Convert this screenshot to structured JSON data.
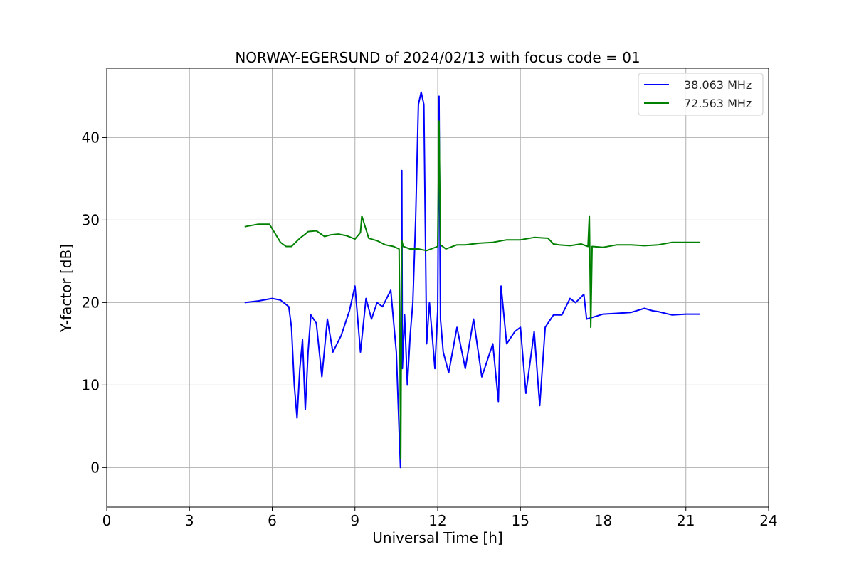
{
  "chart_data": {
    "type": "line",
    "title": "NORWAY-EGERSUND of 2024/02/13 with focus code = 01",
    "xlabel": "Universal Time [h]",
    "ylabel": "Y-factor [dB]",
    "xlim": [
      0,
      24
    ],
    "ylim": [
      -4.8,
      48.4
    ],
    "xticks": [
      "0",
      "3",
      "6",
      "9",
      "12",
      "15",
      "18",
      "21",
      "24"
    ],
    "yticks": [
      "0",
      "10",
      "20",
      "30",
      "40"
    ],
    "grid": true,
    "legend_position": "top-right",
    "series": [
      {
        "name": "38.063 MHz",
        "color": "#0000ff",
        "x": [
          5.0,
          5.5,
          6.0,
          6.3,
          6.6,
          6.7,
          6.8,
          6.9,
          7.0,
          7.1,
          7.2,
          7.3,
          7.4,
          7.6,
          7.8,
          8.0,
          8.2,
          8.5,
          8.8,
          9.0,
          9.2,
          9.4,
          9.6,
          9.8,
          10.0,
          10.3,
          10.5,
          10.65,
          10.7,
          10.72,
          10.8,
          10.9,
          11.0,
          11.1,
          11.2,
          11.3,
          11.4,
          11.5,
          11.6,
          11.7,
          11.8,
          11.9,
          12.0,
          12.05,
          12.1,
          12.2,
          12.4,
          12.7,
          13.0,
          13.3,
          13.6,
          14.0,
          14.2,
          14.3,
          14.5,
          14.8,
          15.0,
          15.2,
          15.5,
          15.7,
          15.9,
          16.2,
          16.5,
          16.8,
          17.0,
          17.3,
          17.4,
          17.6,
          18.0,
          18.5,
          19.0,
          19.5,
          19.8,
          20.0,
          20.5,
          21.0,
          21.5
        ],
        "values": [
          20.0,
          20.2,
          20.5,
          20.3,
          19.5,
          17.0,
          10.0,
          6.0,
          12.0,
          15.5,
          7.0,
          14.0,
          18.5,
          17.5,
          11.0,
          18.0,
          14.0,
          16.0,
          19.0,
          22.0,
          14.0,
          20.5,
          18.0,
          20.0,
          19.5,
          21.5,
          14.0,
          0.0,
          36.0,
          12.0,
          18.5,
          10.0,
          16.0,
          20.0,
          30.0,
          44.0,
          45.5,
          44.0,
          15.0,
          20.0,
          16.0,
          12.0,
          19.0,
          45.0,
          18.0,
          14.0,
          11.5,
          17.0,
          12.0,
          18.0,
          11.0,
          15.0,
          8.0,
          22.0,
          15.0,
          16.5,
          17.0,
          9.0,
          16.5,
          7.5,
          17.0,
          18.5,
          18.5,
          20.5,
          20.0,
          21.0,
          18.0,
          18.2,
          18.6,
          18.7,
          18.8,
          19.3,
          19.0,
          18.9,
          18.5,
          18.6,
          18.6
        ]
      },
      {
        "name": "72.563 MHz",
        "color": "#008000",
        "x": [
          5.0,
          5.5,
          5.9,
          6.1,
          6.3,
          6.5,
          6.7,
          7.0,
          7.2,
          7.3,
          7.6,
          7.9,
          8.1,
          8.4,
          8.7,
          9.0,
          9.2,
          9.25,
          9.5,
          9.8,
          10.1,
          10.4,
          10.6,
          10.66,
          10.7,
          10.75,
          11.0,
          11.3,
          11.6,
          12.0,
          12.05,
          12.1,
          12.3,
          12.7,
          13.0,
          13.5,
          14.0,
          14.5,
          15.0,
          15.5,
          16.0,
          16.2,
          16.4,
          16.8,
          17.2,
          17.45,
          17.5,
          17.55,
          17.6,
          18.0,
          18.5,
          19.0,
          19.5,
          20.0,
          20.5,
          21.0,
          21.5
        ],
        "values": [
          29.2,
          29.5,
          29.5,
          28.4,
          27.3,
          26.8,
          26.8,
          27.8,
          28.3,
          28.6,
          28.7,
          28.0,
          28.2,
          28.3,
          28.1,
          27.7,
          28.5,
          30.5,
          27.8,
          27.5,
          27.0,
          26.8,
          26.5,
          1.0,
          27.5,
          26.8,
          26.5,
          26.5,
          26.3,
          26.8,
          42.0,
          27.0,
          26.5,
          27.0,
          27.0,
          27.2,
          27.3,
          27.6,
          27.6,
          27.9,
          27.8,
          27.1,
          27.0,
          26.9,
          27.1,
          26.8,
          30.5,
          17.0,
          26.8,
          26.7,
          27.0,
          27.0,
          26.9,
          27.0,
          27.3,
          27.3,
          27.3
        ]
      }
    ]
  }
}
